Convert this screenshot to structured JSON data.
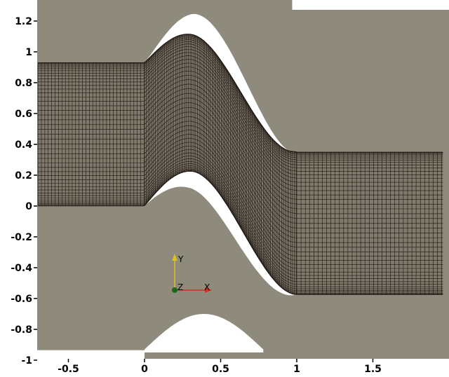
{
  "viewport": {
    "background_color": "#8e8b7d",
    "blade_gap_color": "#ffffff",
    "mesh_line_color": "#1c1410",
    "mesh_fill_color": "#7f7a6c"
  },
  "axes": {
    "x_range": [
      -0.7,
      1.96
    ],
    "y_range": [
      -1.02,
      1.35
    ],
    "x_ticks": [
      {
        "value": -0.5,
        "label": "-0.5"
      },
      {
        "value": 0,
        "label": "0"
      },
      {
        "value": 0.5,
        "label": "0.5"
      },
      {
        "value": 1,
        "label": "1"
      },
      {
        "value": 1.5,
        "label": "1.5"
      }
    ],
    "y_ticks": [
      {
        "value": 1.2,
        "label": "1.2"
      },
      {
        "value": 1,
        "label": "1"
      },
      {
        "value": 0.8,
        "label": "0.8"
      },
      {
        "value": 0.6,
        "label": "0.6"
      },
      {
        "value": 0.4,
        "label": "0.4"
      },
      {
        "value": 0.2,
        "label": "0.2"
      },
      {
        "value": 0,
        "label": "0"
      },
      {
        "value": -0.2,
        "label": "-0.2"
      },
      {
        "value": -0.4,
        "label": "-0.4"
      },
      {
        "value": -0.6,
        "label": "-0.6"
      },
      {
        "value": -0.8,
        "label": "-0.8"
      },
      {
        "value": -1,
        "label": "-1"
      }
    ]
  },
  "orientation_axes": {
    "x_label": "X",
    "y_label": "Y",
    "z_label": "Z",
    "x_color": "#d43020",
    "y_color": "#d8c020",
    "z_color": "#1a6a1a"
  }
}
